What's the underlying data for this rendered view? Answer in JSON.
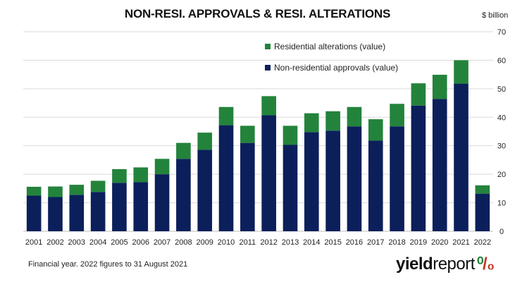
{
  "chart_data": {
    "type": "bar",
    "stacked": true,
    "title": "NON-RESI. APPROVALS & RESI. ALTERATIONS",
    "y_unit_label": "$ billion",
    "categories": [
      "2001",
      "2002",
      "2003",
      "2004",
      "2005",
      "2006",
      "2007",
      "2008",
      "2009",
      "2010",
      "2011",
      "2012",
      "2013",
      "2014",
      "2015",
      "2016",
      "2017",
      "2018",
      "2019",
      "2020",
      "2021",
      "2022"
    ],
    "series": [
      {
        "name": "Non-residential approvals (value)",
        "color": "#0b1f5b",
        "values": [
          12.5,
          12.0,
          12.8,
          13.8,
          17.0,
          17.2,
          20.0,
          25.4,
          28.6,
          37.2,
          31.0,
          40.7,
          30.3,
          34.8,
          35.3,
          36.8,
          31.8,
          36.8,
          44.1,
          46.4,
          51.8,
          13.2
        ]
      },
      {
        "name": "Residential alterations (value)",
        "color": "#23833b",
        "values": [
          3.1,
          3.7,
          3.5,
          3.9,
          4.8,
          5.2,
          5.4,
          5.6,
          6.0,
          6.4,
          6.0,
          6.7,
          6.7,
          6.6,
          6.8,
          6.8,
          7.5,
          7.9,
          7.8,
          8.5,
          8.2,
          2.9
        ]
      }
    ],
    "ylim": [
      0,
      70
    ],
    "yticks": [
      0,
      10,
      20,
      30,
      40,
      50,
      60,
      70
    ],
    "y_axis_side": "right",
    "grid": true,
    "legend_position": "top-right"
  },
  "footnote": "Financial year. 2022 figures to 31 August 2021",
  "brand": {
    "part1": "yield",
    "part2": "report",
    "part3": "⁰",
    "part4": "/₀"
  }
}
